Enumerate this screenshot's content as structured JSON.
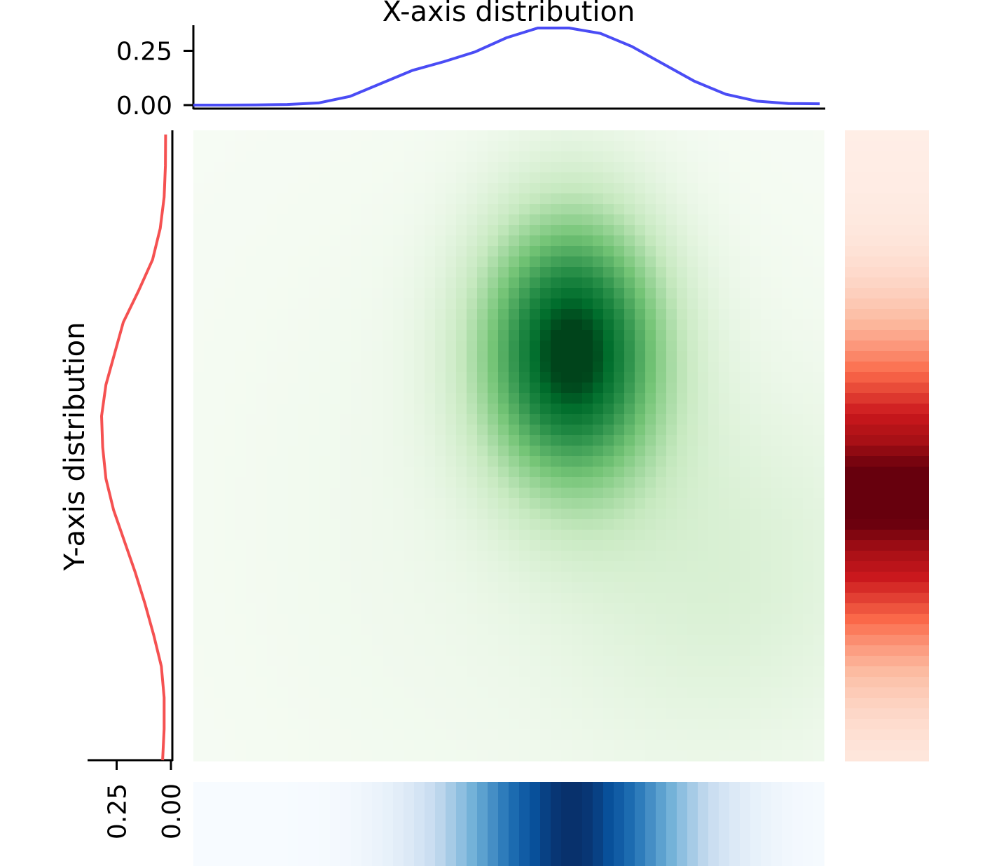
{
  "chart_data": {
    "type": "heatmap",
    "subtype": "joint density with marginal distributions",
    "grid": false,
    "top_marginal": {
      "title": "X-axis distribution",
      "type": "line",
      "color": "#4a4cf5",
      "ylim": [
        0,
        0.38
      ],
      "yticks": [
        0.0,
        0.25
      ],
      "ytick_labels": [
        "0.00",
        "0.25"
      ],
      "x": [
        0.0,
        0.05,
        0.1,
        0.15,
        0.2,
        0.25,
        0.3,
        0.35,
        0.4,
        0.45,
        0.5,
        0.55,
        0.6,
        0.65,
        0.7,
        0.75,
        0.8,
        0.85,
        0.9,
        0.95,
        1.0
      ],
      "values": [
        0.0,
        0.0,
        0.001,
        0.003,
        0.01,
        0.04,
        0.1,
        0.16,
        0.2,
        0.245,
        0.31,
        0.355,
        0.355,
        0.33,
        0.27,
        0.19,
        0.11,
        0.05,
        0.018,
        0.007,
        0.006
      ]
    },
    "left_marginal": {
      "title": "Y-axis distribution",
      "type": "line",
      "color": "#f55151",
      "xlim": [
        0,
        0.38
      ],
      "xticks": [
        0.0,
        0.25
      ],
      "xtick_labels": [
        "0.00",
        "0.25"
      ],
      "y": [
        0.0,
        0.05,
        0.1,
        0.15,
        0.2,
        0.25,
        0.3,
        0.35,
        0.4,
        0.45,
        0.5,
        0.55,
        0.6,
        0.65,
        0.7,
        0.75,
        0.8,
        0.85,
        0.9,
        0.95,
        1.0
      ],
      "values": [
        0.019,
        0.012,
        0.012,
        0.025,
        0.06,
        0.1,
        0.145,
        0.195,
        0.245,
        0.28,
        0.295,
        0.3,
        0.28,
        0.24,
        0.2,
        0.13,
        0.065,
        0.03,
        0.012,
        0.006,
        0.005
      ]
    },
    "main_heatmap": {
      "colormap": "Greens",
      "grid_size": 60,
      "peak": {
        "x": 0.6,
        "y": 0.65
      },
      "spread": {
        "x": 0.1,
        "y": 0.15
      },
      "xlim": [
        0,
        1
      ],
      "ylim": [
        0,
        1
      ]
    },
    "bottom_strip": {
      "colormap": "Blues",
      "description": "x-marginal density as color strip",
      "cells": 60
    },
    "right_strip": {
      "colormap": "Reds",
      "description": "y-marginal density as color strip",
      "cells": 60
    }
  }
}
